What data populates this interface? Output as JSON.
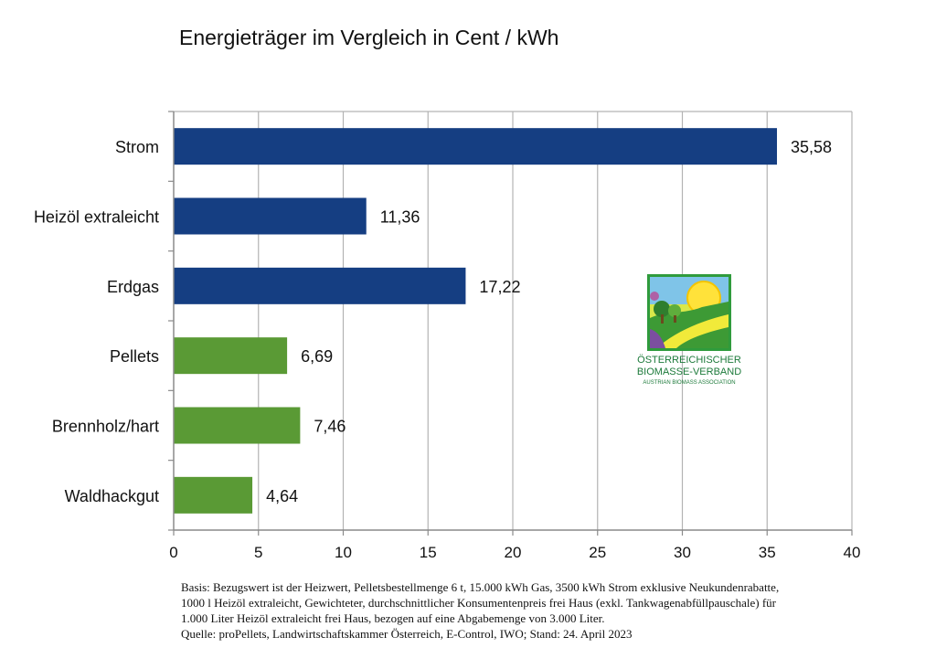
{
  "chart_data": {
    "type": "bar",
    "orientation": "horizontal",
    "title": "Energieträger im Vergleich in Cent / kWh",
    "categories": [
      "Strom",
      "Heizöl extraleicht",
      "Erdgas",
      "Pellets",
      "Brennholz/hart",
      "Waldhackgut"
    ],
    "values": [
      35.58,
      11.36,
      17.22,
      6.69,
      7.46,
      4.64
    ],
    "value_labels": [
      "35,58",
      "11,36",
      "17,22",
      "6,69",
      "7,46",
      "4,64"
    ],
    "bar_colors": [
      "#153e82",
      "#153e82",
      "#153e82",
      "#5a9a35",
      "#5a9a35",
      "#5a9a35"
    ],
    "xlim": [
      0,
      40
    ],
    "xticks": [
      0,
      5,
      10,
      15,
      20,
      25,
      30,
      35,
      40
    ],
    "grid": true,
    "xlabel": "",
    "ylabel": ""
  },
  "logo": {
    "line1": "ÖSTERREICHISCHER",
    "line2": "BIOMASSE-VERBAND",
    "line3": "AUSTRIAN BIOMASS ASSOCIATION"
  },
  "note": {
    "line1": "Basis: Bezugswert ist der Heizwert, Pelletsbestellmenge 6 t, 15.000 kWh Gas, 3500 kWh Strom exklusive Neukundenrabatte,",
    "line2": "1000 l Heizöl extraleicht, Gewichteter, durchschnittlicher Konsumentenpreis frei Haus (exkl. Tankwagenabfüllpauschale) für",
    "line3": "1.000 Liter Heizöl extraleicht frei Haus, bezogen auf eine Abgabemenge von 3.000 Liter.",
    "line4": "Quelle: proPellets, Landwirtschaftskammer Österreich, E-Control, IWO; Stand: 24. April 2023"
  }
}
